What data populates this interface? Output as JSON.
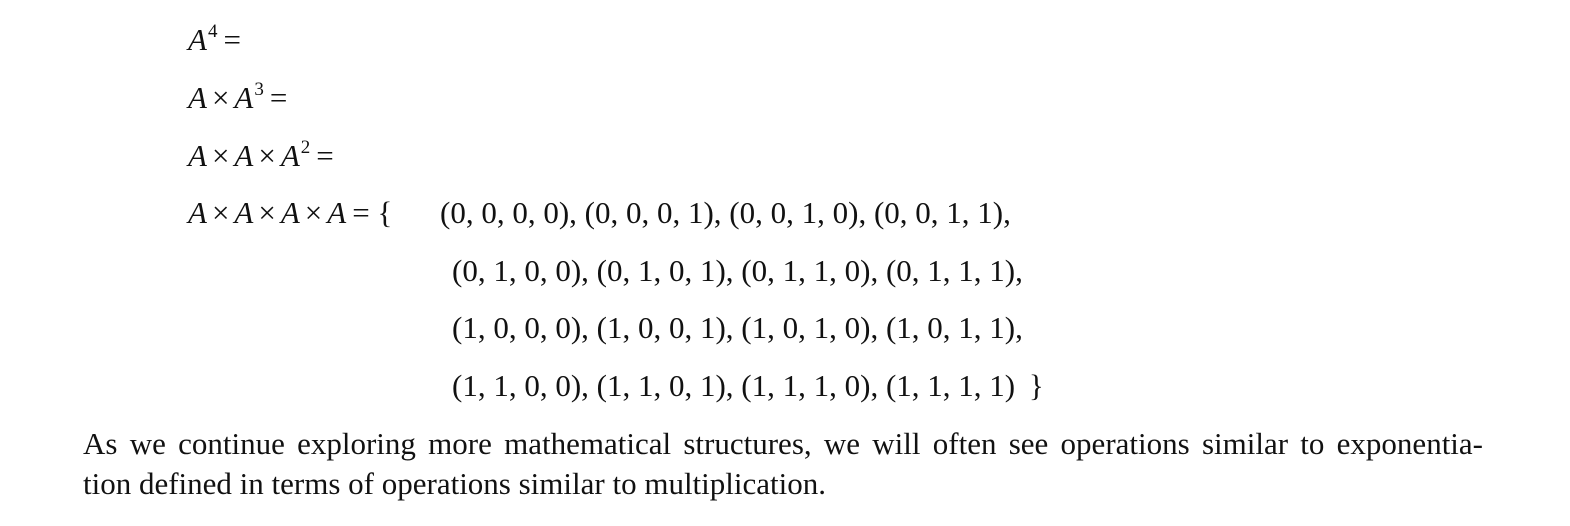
{
  "equations": {
    "line1": {
      "base": "A",
      "exp": "4",
      "eq": "="
    },
    "line2": {
      "a1": "A",
      "times": "×",
      "base": "A",
      "exp": "3",
      "eq": "="
    },
    "line3": {
      "a1": "A",
      "times1": "×",
      "a2": "A",
      "times2": "×",
      "base": "A",
      "exp": "2",
      "eq": "="
    },
    "line4": {
      "a1": "A",
      "times": "×",
      "a2": "A",
      "a3": "A",
      "a4": "A",
      "eq": "=",
      "open_brace": "{"
    }
  },
  "tuple_rows": [
    "(0, 0, 0, 0), (0, 0, 0, 1), (0, 0, 1, 0), (0, 0, 1, 1),",
    "(0, 1, 0, 0), (0, 1, 0, 1), (0, 1, 1, 0), (0, 1, 1, 1),",
    "(1, 0, 0, 0), (1, 0, 0, 1), (1, 0, 1, 0), (1, 0, 1, 1),",
    "(1, 1, 0, 0), (1, 1, 0, 1), (1, 1, 1, 0), (1, 1, 1, 1)"
  ],
  "close_brace": "}",
  "paragraph": {
    "line1": "As we continue exploring more mathematical structures, we will often see operations similar to exponentia-",
    "line2": "tion defined in terms of operations similar to multiplication."
  }
}
